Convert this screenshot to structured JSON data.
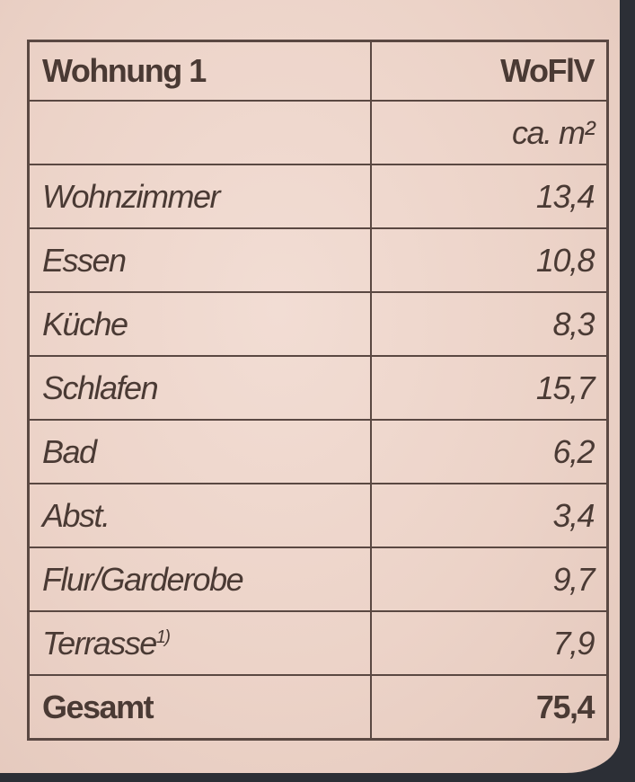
{
  "table": {
    "header": {
      "label": "Wohnung 1",
      "unit_standard": "WoFlV"
    },
    "unit": "ca. m²",
    "rows": [
      {
        "label": "Wohnzimmer",
        "value": "13,4"
      },
      {
        "label": "Essen",
        "value": "10,8"
      },
      {
        "label": "Küche",
        "value": "8,3"
      },
      {
        "label": "Schlafen",
        "value": "15,7"
      },
      {
        "label": "Bad",
        "value": "6,2"
      },
      {
        "label": "Abst.",
        "value": "3,4"
      },
      {
        "label": "Flur/Garderobe",
        "value": "9,7"
      },
      {
        "label": "Terrasse",
        "footnote": "1)",
        "value": "7,9"
      }
    ],
    "total": {
      "label": "Gesamt",
      "value": "75,4"
    }
  }
}
